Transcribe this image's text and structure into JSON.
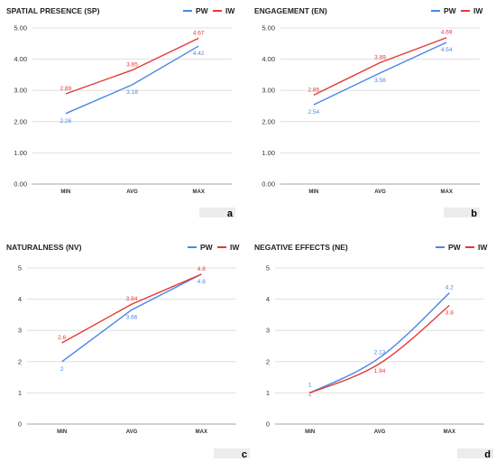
{
  "legend": {
    "pw": "PW",
    "iw": "IW"
  },
  "colors": {
    "pw": "#4a86e8",
    "iw": "#e53935",
    "grid": "#d9d9d9",
    "tag": "#ececec"
  },
  "chart_data": [
    {
      "type": "line",
      "title": "SPATIAL PRESENCE (SP)",
      "panel_label": "a",
      "categories": [
        "MIN",
        "AVG",
        "MAX"
      ],
      "y_ticks": [
        "0.00",
        "1.00",
        "2.00",
        "3.00",
        "4.00",
        "5.00"
      ],
      "ylim": [
        0,
        5
      ],
      "series": [
        {
          "name": "PW",
          "values": [
            2.26,
            3.18,
            4.42
          ],
          "labels": [
            "2.26",
            "3.18",
            "4.42"
          ]
        },
        {
          "name": "IW",
          "values": [
            2.89,
            3.65,
            4.67
          ],
          "labels": [
            "2.89",
            "3.65",
            "4.67"
          ]
        }
      ],
      "grid": true,
      "legend_position": "top-right"
    },
    {
      "type": "line",
      "title": "ENGAGEMENT (EN)",
      "panel_label": "b",
      "categories": [
        "MIN",
        "AVG",
        "MAX"
      ],
      "y_ticks": [
        "0.00",
        "1.00",
        "2.00",
        "3.00",
        "4.00",
        "5.00"
      ],
      "ylim": [
        0,
        5
      ],
      "series": [
        {
          "name": "PW",
          "values": [
            2.54,
            3.56,
            4.54
          ],
          "labels": [
            "2.54",
            "3.56",
            "4.54"
          ]
        },
        {
          "name": "IW",
          "values": [
            2.85,
            3.89,
            4.69
          ],
          "labels": [
            "2.85",
            "3.89",
            "4.69"
          ]
        }
      ],
      "grid": true,
      "legend_position": "top-right"
    },
    {
      "type": "line",
      "title": "NATURALNESS (NV)",
      "panel_label": "c",
      "categories": [
        "MIN",
        "AVG",
        "MAX"
      ],
      "y_ticks": [
        "0",
        "1",
        "2",
        "3",
        "4",
        "5"
      ],
      "ylim": [
        0,
        5
      ],
      "series": [
        {
          "name": "PW",
          "values": [
            2,
            3.66,
            4.8
          ],
          "labels": [
            "2",
            "3.66",
            "4.8"
          ]
        },
        {
          "name": "IW",
          "values": [
            2.6,
            3.84,
            4.8
          ],
          "labels": [
            "2.6",
            "3.84",
            "4.8"
          ]
        }
      ],
      "grid": true,
      "legend_position": "top-right"
    },
    {
      "type": "line",
      "title": "NEGATIVE EFFECTS (NE)",
      "panel_label": "d",
      "categories": [
        "MIN",
        "AVG",
        "MAX"
      ],
      "y_ticks": [
        "0",
        "1",
        "2",
        "3",
        "4",
        "5"
      ],
      "ylim": [
        0,
        5
      ],
      "series": [
        {
          "name": "PW",
          "values": [
            1,
            2.13,
            4.2
          ],
          "labels": [
            "1",
            "2.13",
            "4.2"
          ]
        },
        {
          "name": "IW",
          "values": [
            1,
            1.94,
            3.8
          ],
          "labels": [
            "1",
            "1.94",
            "3.8"
          ]
        }
      ],
      "grid": true,
      "legend_position": "top-right"
    }
  ]
}
